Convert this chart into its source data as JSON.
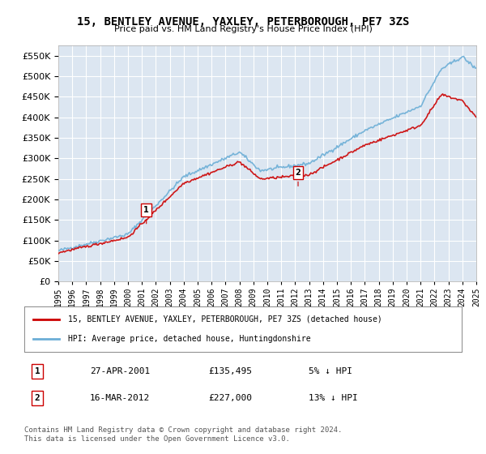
{
  "title": "15, BENTLEY AVENUE, YAXLEY, PETERBOROUGH, PE7 3ZS",
  "subtitle": "Price paid vs. HM Land Registry's House Price Index (HPI)",
  "ytick_values": [
    0,
    50000,
    100000,
    150000,
    200000,
    250000,
    300000,
    350000,
    400000,
    450000,
    500000,
    550000
  ],
  "ylim": [
    0,
    575000
  ],
  "background_color": "#ffffff",
  "plot_bg_color": "#dce6f1",
  "grid_color": "#ffffff",
  "red_line_color": "#cc0000",
  "blue_line_color": "#6baed6",
  "marker1_year": 2001.32,
  "marker1_value": 135495,
  "marker2_year": 2012.21,
  "marker2_value": 227000,
  "legend_red_label": "15, BENTLEY AVENUE, YAXLEY, PETERBOROUGH, PE7 3ZS (detached house)",
  "legend_blue_label": "HPI: Average price, detached house, Huntingdonshire",
  "table_row1": [
    "1",
    "27-APR-2001",
    "£135,495",
    "5% ↓ HPI"
  ],
  "table_row2": [
    "2",
    "16-MAR-2012",
    "£227,000",
    "13% ↓ HPI"
  ],
  "footer": "Contains HM Land Registry data © Crown copyright and database right 2024.\nThis data is licensed under the Open Government Licence v3.0.",
  "xstart": 1995,
  "xend": 2025,
  "xtick_years": [
    1995,
    1996,
    1997,
    1998,
    1999,
    2000,
    2001,
    2002,
    2003,
    2004,
    2005,
    2006,
    2007,
    2008,
    2009,
    2010,
    2011,
    2012,
    2013,
    2014,
    2015,
    2016,
    2017,
    2018,
    2019,
    2020,
    2021,
    2022,
    2023,
    2024,
    2025
  ]
}
